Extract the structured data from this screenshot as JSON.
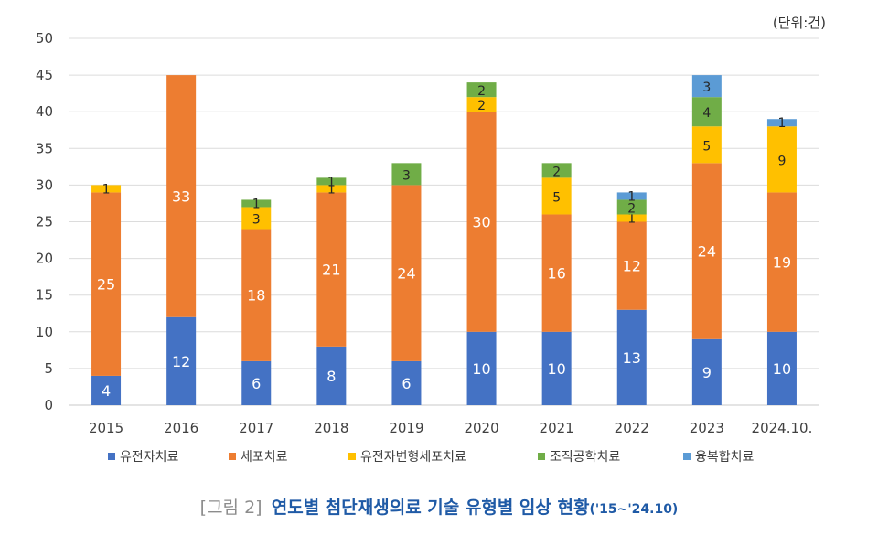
{
  "chart_data": {
    "type": "bar",
    "stacked": true,
    "unit_note": "(단위:건)",
    "categories": [
      "2015",
      "2016",
      "2017",
      "2018",
      "2019",
      "2020",
      "2021",
      "2022",
      "2023",
      "2024.10."
    ],
    "series": [
      {
        "name": "유전자치료",
        "color": "#4472c4",
        "values": [
          4,
          12,
          6,
          8,
          6,
          10,
          10,
          13,
          9,
          10
        ]
      },
      {
        "name": "세포치료",
        "color": "#ed7d31",
        "values": [
          25,
          33,
          18,
          21,
          24,
          30,
          16,
          12,
          24,
          19
        ]
      },
      {
        "name": "유전자변형세포치료",
        "color": "#ffc000",
        "values": [
          1,
          0,
          3,
          1,
          0,
          2,
          5,
          1,
          5,
          9
        ]
      },
      {
        "name": "조직공학치료",
        "color": "#70ad47",
        "values": [
          0,
          0,
          1,
          1,
          3,
          2,
          2,
          2,
          4,
          0
        ]
      },
      {
        "name": "융복합치료",
        "color": "#5b9bd5",
        "values": [
          0,
          0,
          0,
          0,
          0,
          0,
          0,
          1,
          3,
          1
        ]
      }
    ],
    "yticks": [
      0,
      5,
      10,
      15,
      20,
      25,
      30,
      35,
      40,
      45,
      50
    ],
    "ylim": [
      0,
      50
    ],
    "grid": true,
    "legend_position": "bottom"
  },
  "caption": {
    "prefix": "[그림 2]",
    "title": "연도별 첨단재생의료 기술 유형별 임상 현황",
    "period": "('15~'24.10)"
  }
}
